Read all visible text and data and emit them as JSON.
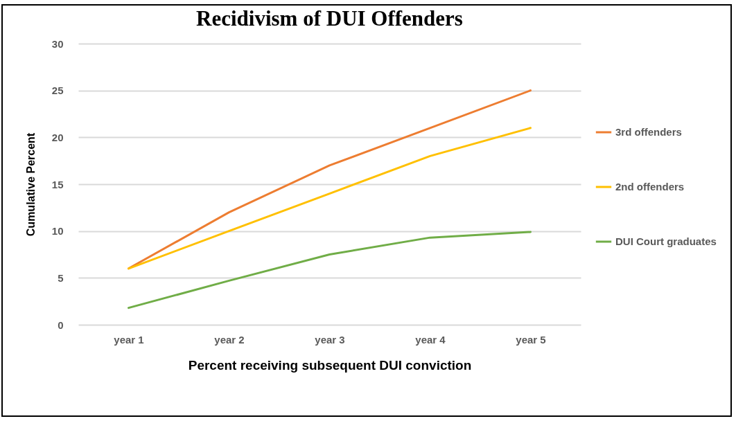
{
  "chart_data": {
    "type": "line",
    "title": "Recidivism of DUI Offenders",
    "xlabel": "Percent receiving subsequent DUI conviction",
    "ylabel": "Cumulative Percent",
    "categories": [
      "year 1",
      "year 2",
      "year 3",
      "year 4",
      "year 5"
    ],
    "series": [
      {
        "name": "3rd offenders",
        "color": "#ed7d31",
        "values": [
          6,
          12,
          17,
          21,
          25
        ]
      },
      {
        "name": "2nd offenders",
        "color": "#ffc000",
        "values": [
          6,
          10,
          14,
          18,
          21
        ]
      },
      {
        "name": "DUI Court graduates",
        "color": "#70ad47",
        "values": [
          1.8,
          4.7,
          7.5,
          9.3,
          9.9
        ]
      }
    ],
    "ylim": [
      0,
      30
    ],
    "yticks": [
      0,
      5,
      10,
      15,
      20,
      25,
      30
    ],
    "grid": "y",
    "legend": "right",
    "marker": "none",
    "line_style": "solid"
  }
}
